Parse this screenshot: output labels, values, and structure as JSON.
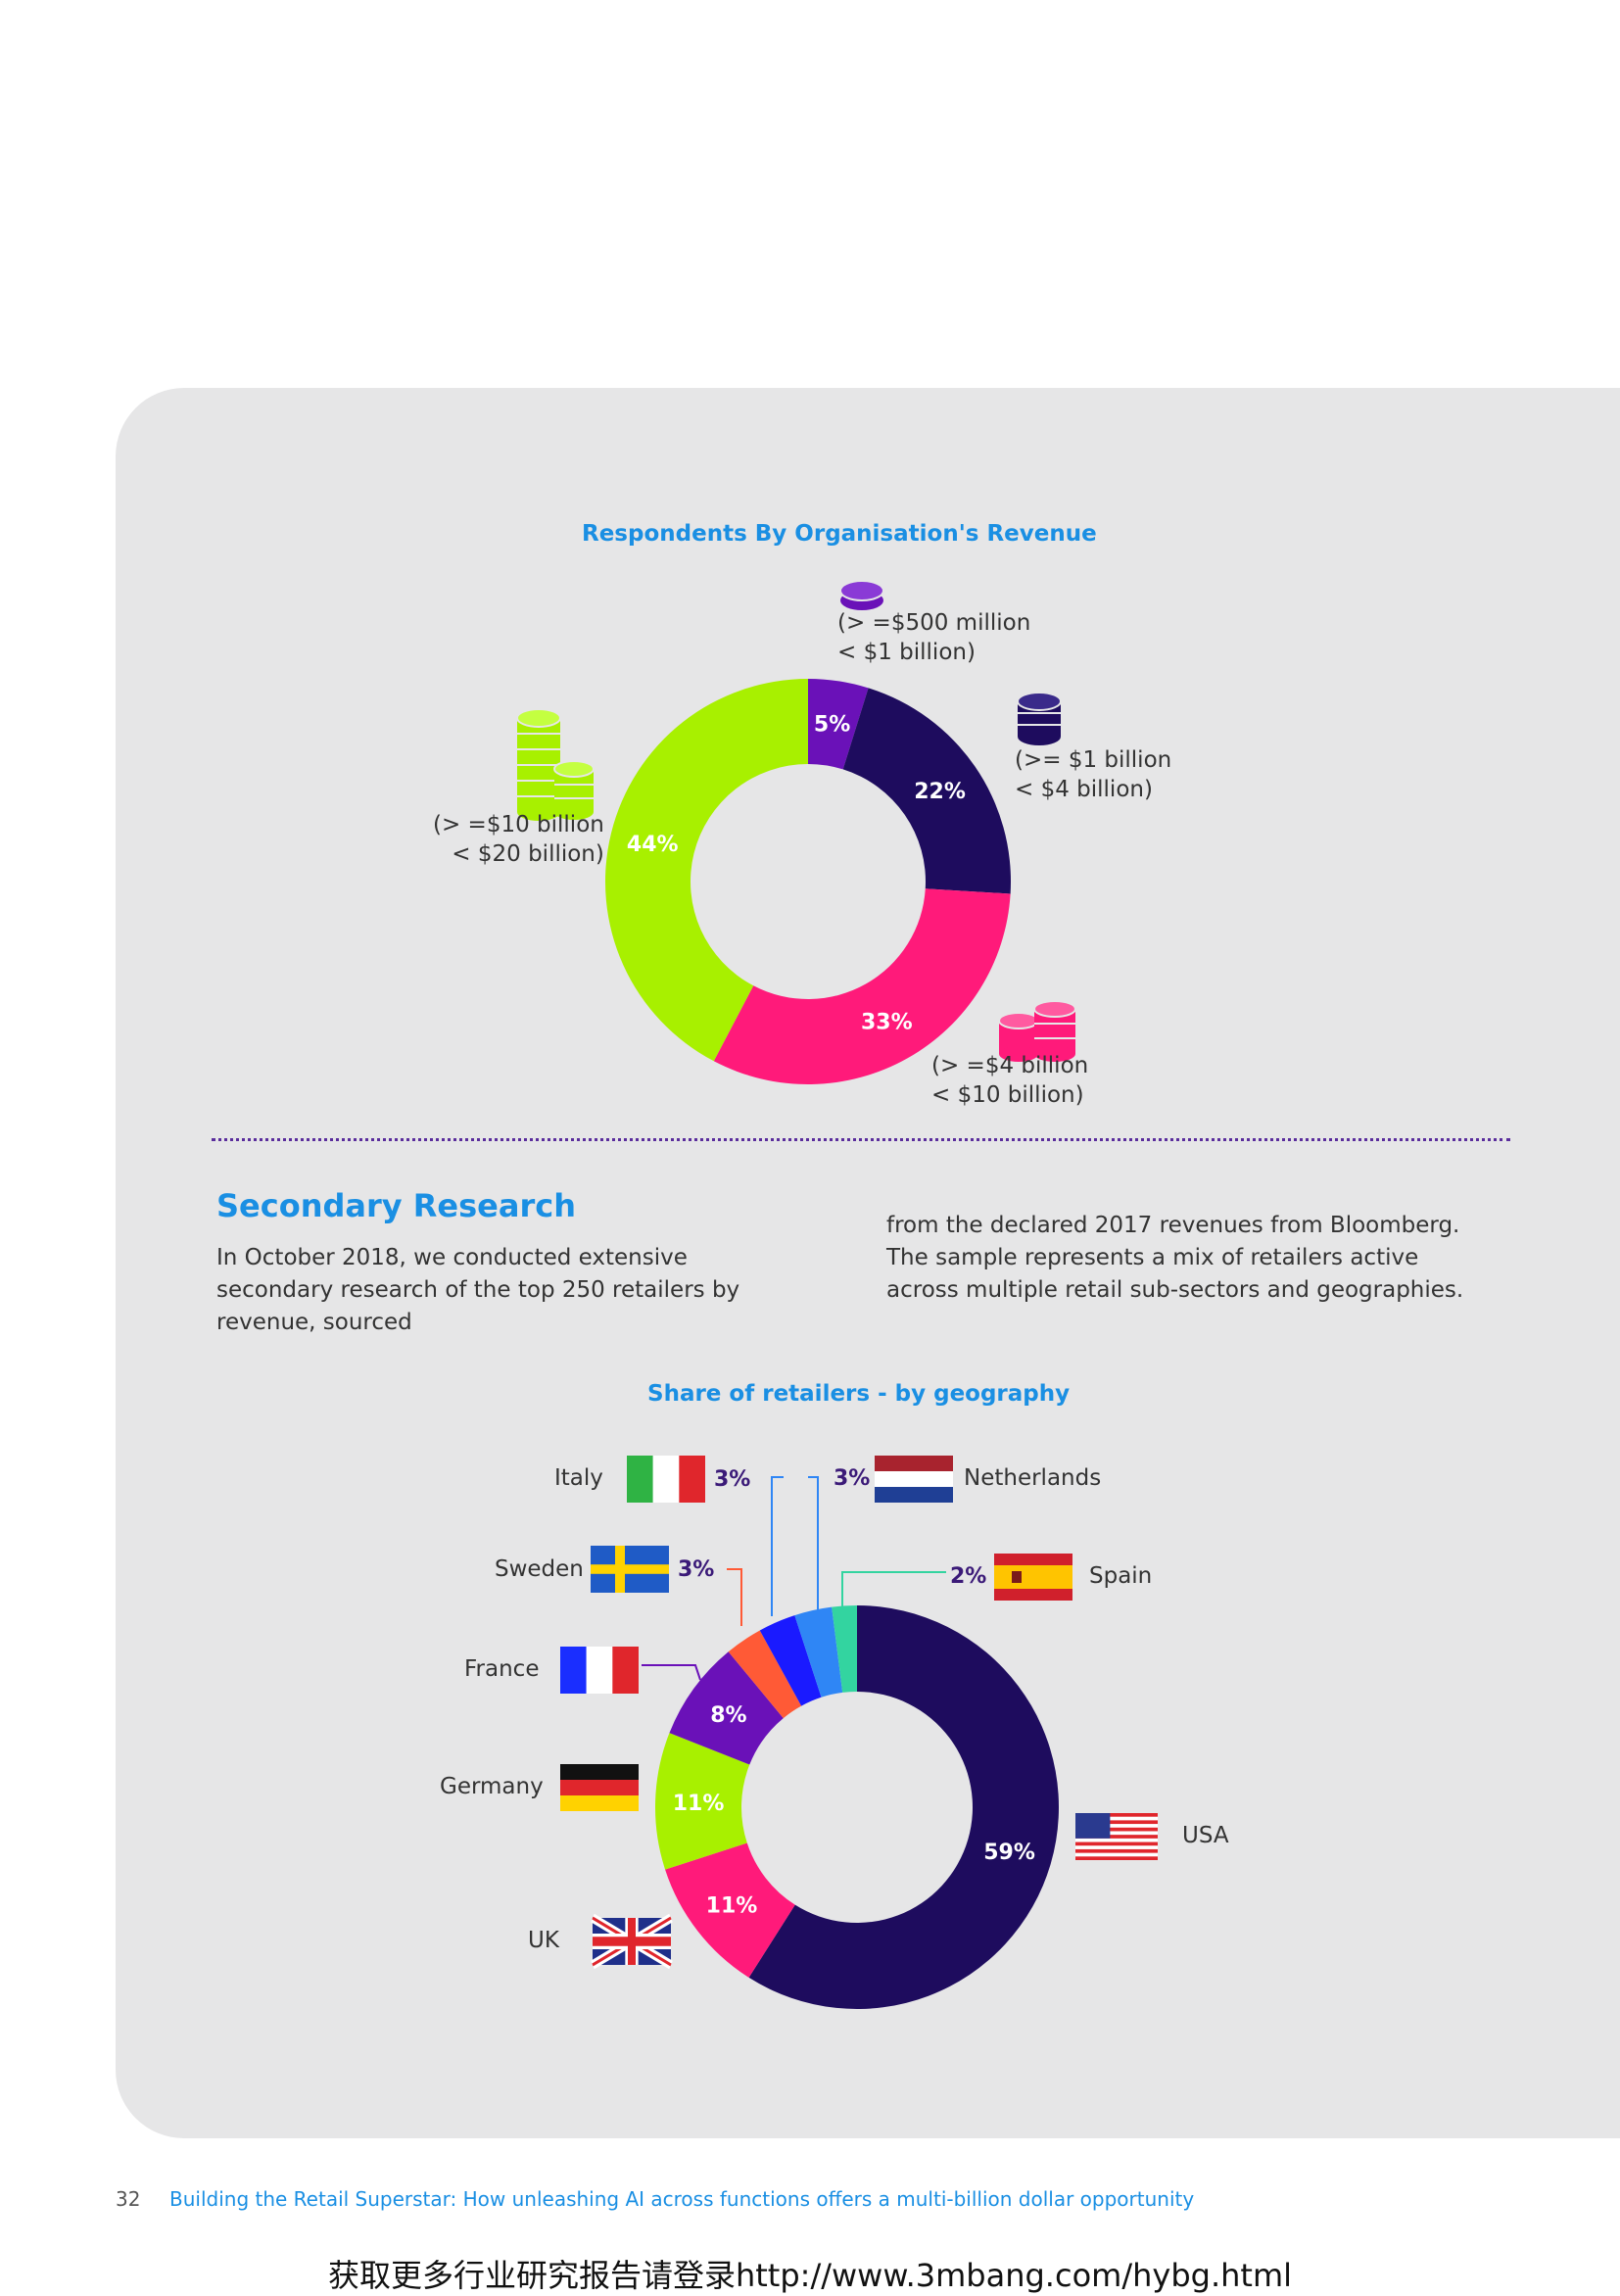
{
  "revenue_chart": {
    "title": "Respondents By Organisation's Revenue",
    "labels": {
      "a": "(> =$500 million\n< $1 billion)",
      "b": "(>= $1 billion\n< $4 billion)",
      "c": "(> =$4 billion\n< $10 billion)",
      "d": "(> =$10 billion\n< $20 billion)"
    }
  },
  "geo_chart": {
    "title": "Share of retailers - by geography"
  },
  "secondary": {
    "title": "Secondary Research",
    "col1": "In October 2018, we conducted extensive secondary research of the top 250 retailers by revenue, sourced",
    "col2": "from the declared 2017 revenues from Bloomberg. The sample represents a mix of retailers active across multiple retail sub-sectors and geographies."
  },
  "countries": {
    "italy": "Italy",
    "sweden": "Sweden",
    "france": "France",
    "germany": "Germany",
    "uk": "UK",
    "netherlands": "Netherlands",
    "spain": "Spain",
    "usa": "USA",
    "italy_pct": "3%",
    "sweden_pct": "3%",
    "netherlands_pct": "3%",
    "spain_pct": "2%"
  },
  "footer": {
    "page": "32",
    "text": "Building the Retail Superstar: How unleashing AI across functions offers a multi-billion dollar opportunity"
  },
  "watermark": "获取更多行业研究报告请登录http://www.3mbang.com/hybg.html",
  "chart_data": [
    {
      "type": "pie",
      "title": "Respondents By Organisation's Revenue",
      "categories": [
        "(> =$500 million < $1 billion)",
        "(>= $1 billion < $4 billion)",
        "(> =$4 billion < $10 billion)",
        "(> =$10 billion < $20 billion)"
      ],
      "values": [
        5,
        22,
        33,
        44
      ],
      "value_labels": [
        "5%",
        "22%",
        "33%",
        "44%"
      ],
      "colors": [
        "#6a11b8",
        "#1e0c5e",
        "#ff1a7a",
        "#a8f000"
      ]
    },
    {
      "type": "pie",
      "title": "Share of retailers - by geography",
      "categories": [
        "USA",
        "UK",
        "Germany",
        "France",
        "Sweden",
        "Italy",
        "Netherlands",
        "Spain"
      ],
      "values": [
        59,
        11,
        11,
        8,
        3,
        3,
        3,
        2
      ],
      "value_labels": [
        "59%",
        "11%",
        "11%",
        "8%",
        "3%",
        "3%",
        "3%",
        "2%"
      ],
      "colors": [
        "#1e0c5e",
        "#ff1a7a",
        "#a8f000",
        "#6a11b8",
        "#ff5a36",
        "#1a1aff",
        "#2f86f5",
        "#33d4a0"
      ]
    }
  ]
}
